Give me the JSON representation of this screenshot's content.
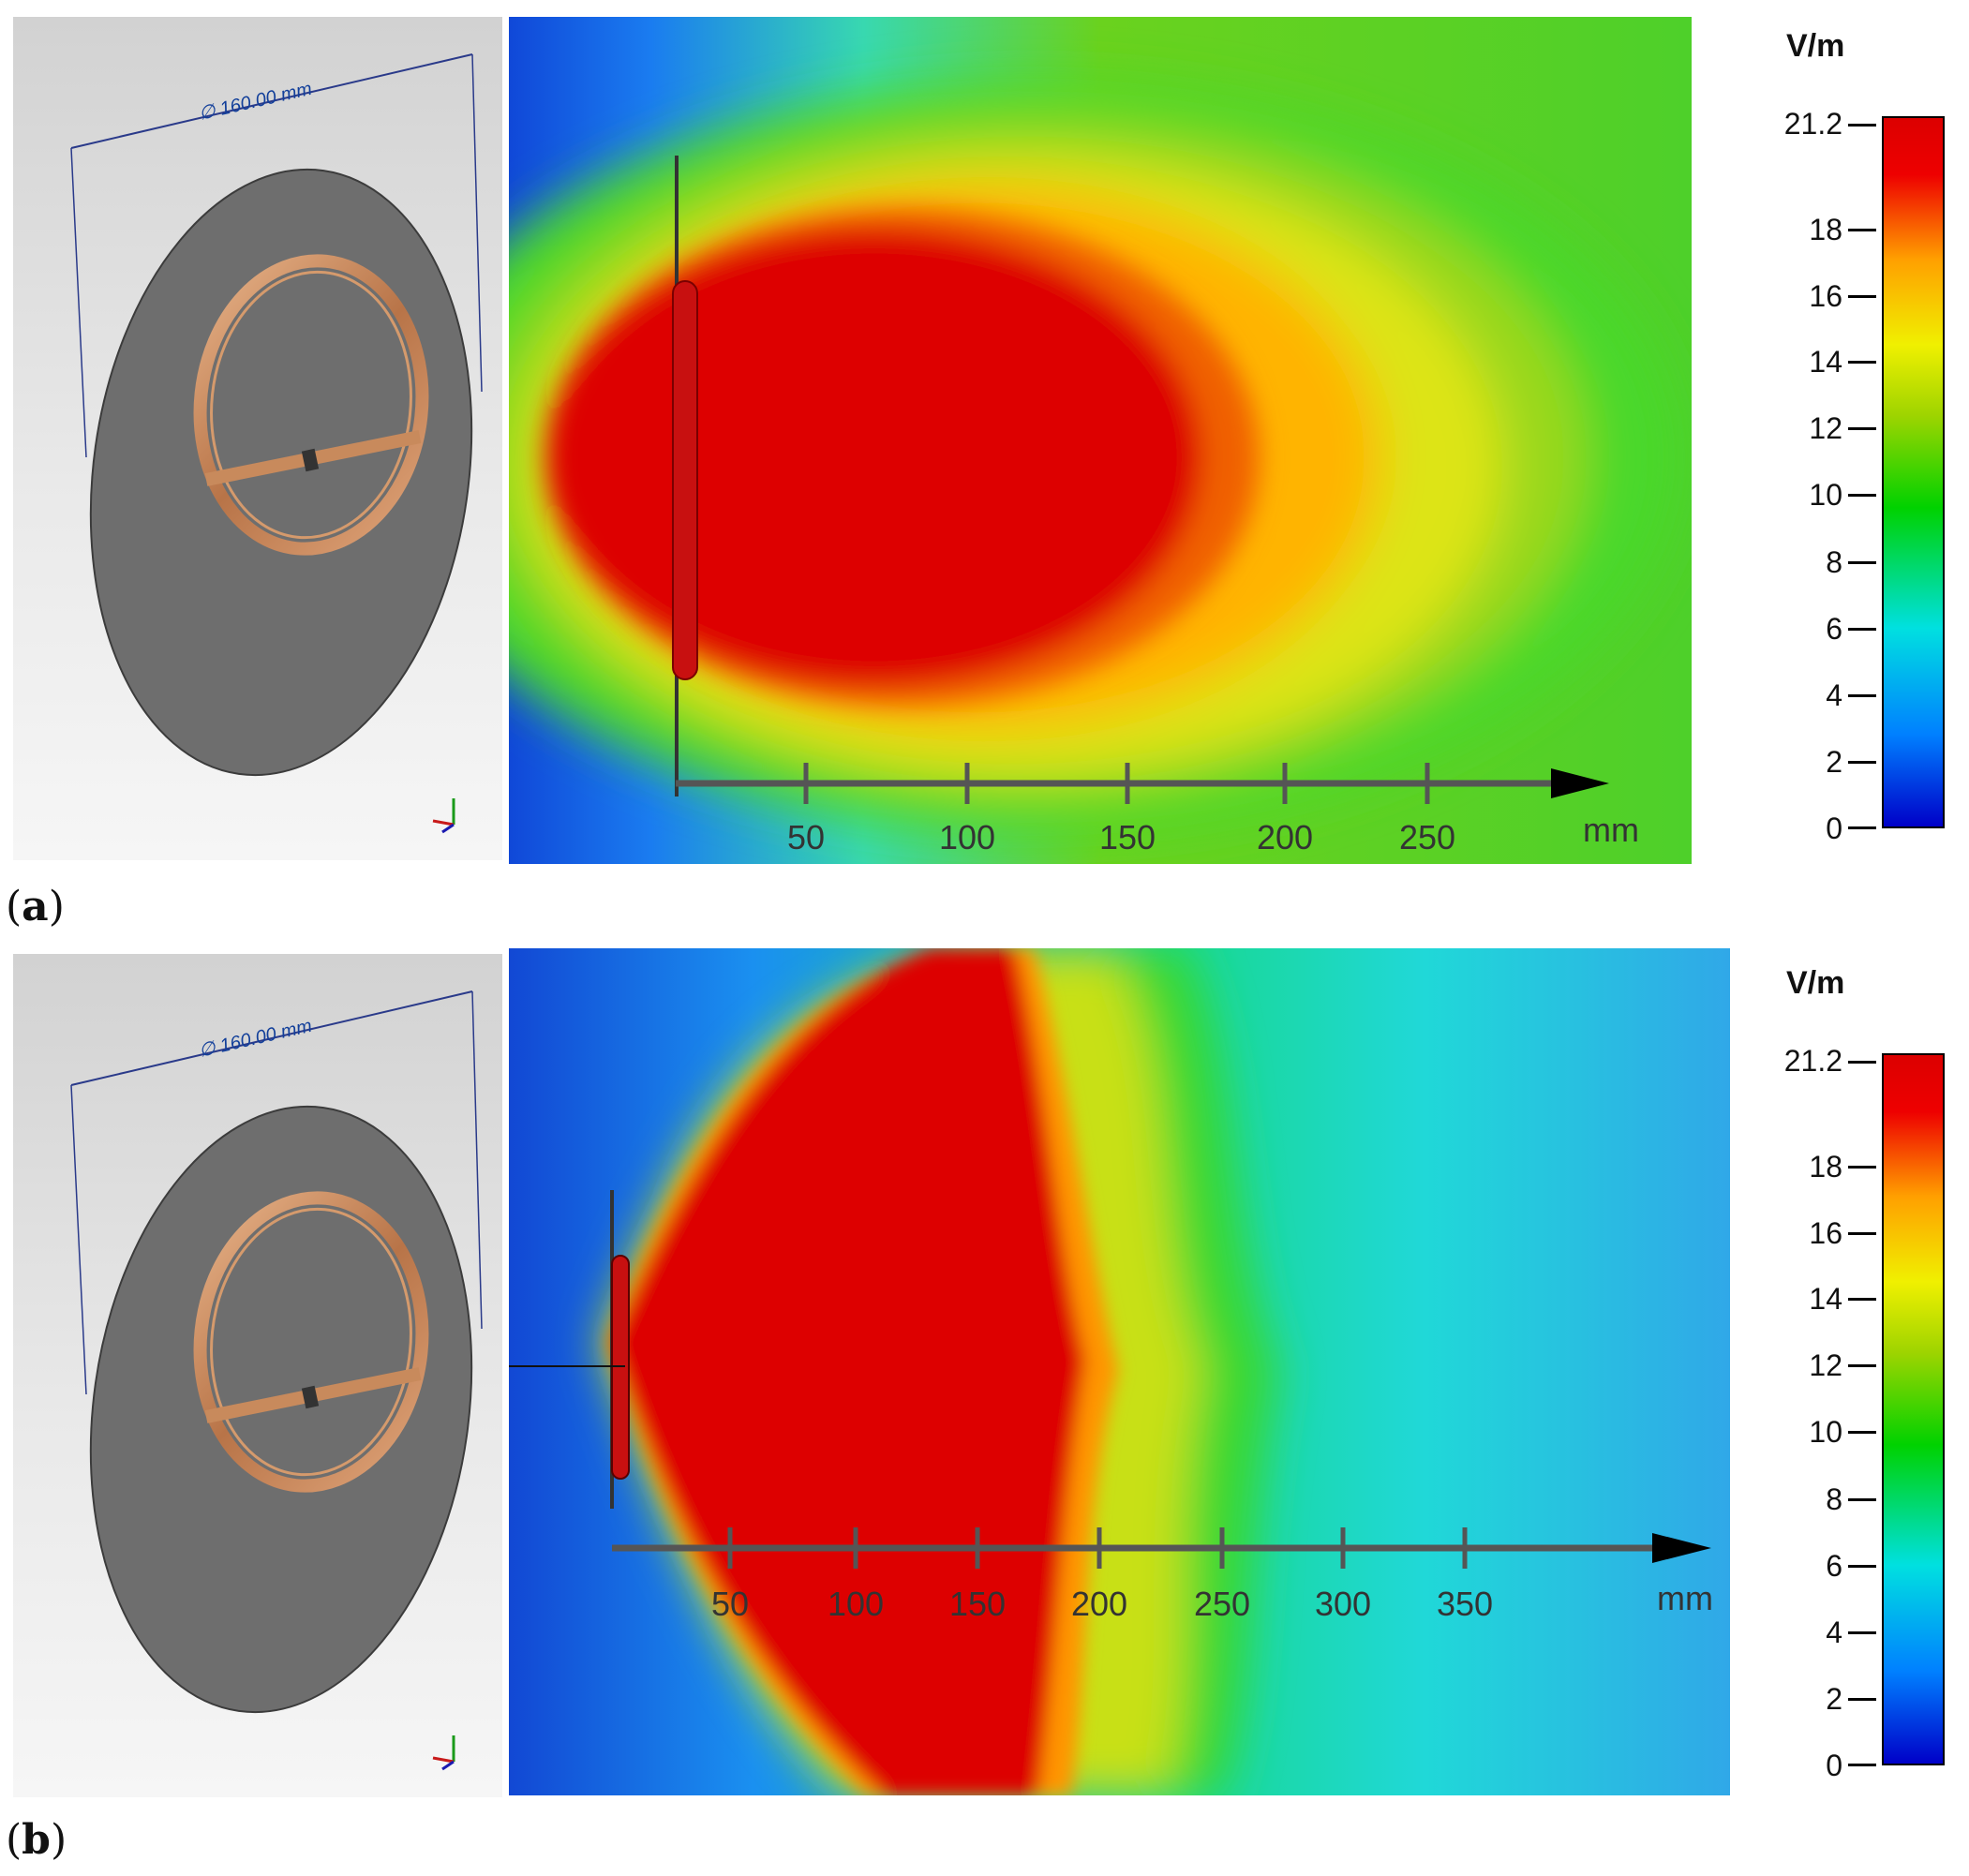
{
  "panels": [
    {
      "label": "a",
      "model": {
        "dimension_label": "∅ 160.00 mm"
      },
      "field_map": {
        "axis_ticks": [
          "50",
          "100",
          "150",
          "200",
          "250"
        ],
        "axis_unit": "mm"
      }
    },
    {
      "label": "b",
      "model": {
        "dimension_label": "∅ 160.00 mm"
      },
      "field_map": {
        "axis_ticks": [
          "50",
          "100",
          "150",
          "200",
          "250",
          "300",
          "350"
        ],
        "axis_unit": "mm"
      }
    }
  ],
  "colorbar": {
    "unit": "V/m",
    "max_label": "21.2",
    "tick_labels": [
      "18",
      "16",
      "14",
      "12",
      "10",
      "8",
      "6",
      "4",
      "2",
      "0"
    ]
  },
  "colors": {
    "field_red": "#dd0000",
    "field_blue": "#0030d0",
    "axis_gray": "#555555",
    "copper": "#c88a5c",
    "plate_gray": "#6e6e6e"
  }
}
